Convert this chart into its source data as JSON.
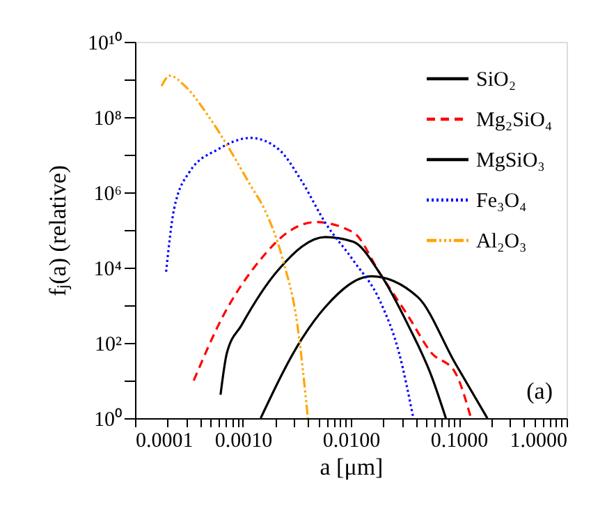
{
  "chart_data": {
    "type": "line",
    "xlabel": "a [μm]",
    "ylabel": "fⱼ(a)  (relative)",
    "log": "xy",
    "grid": false,
    "legend": "top right",
    "xlim": [
      0.0001,
      1.0
    ],
    "ylim": [
      1,
      10000000000
    ],
    "xticks": [
      {
        "value": 0.0001,
        "label": "0.0001"
      },
      {
        "value": 0.0002,
        "label": null
      },
      {
        "value": 0.0003,
        "label": null
      },
      {
        "value": 0.0004,
        "label": null
      },
      {
        "value": 0.0005,
        "label": null
      },
      {
        "value": 0.0006,
        "label": null
      },
      {
        "value": 0.0007,
        "label": null
      },
      {
        "value": 0.0008,
        "label": null
      },
      {
        "value": 0.0009,
        "label": null
      },
      {
        "value": 0.001,
        "label": "0.0010"
      },
      {
        "value": 0.002,
        "label": null
      },
      {
        "value": 0.003,
        "label": null
      },
      {
        "value": 0.004,
        "label": null
      },
      {
        "value": 0.005,
        "label": null
      },
      {
        "value": 0.006,
        "label": null
      },
      {
        "value": 0.007,
        "label": null
      },
      {
        "value": 0.008,
        "label": null
      },
      {
        "value": 0.009,
        "label": null
      },
      {
        "value": 0.01,
        "label": "0.0100"
      },
      {
        "value": 0.02,
        "label": null
      },
      {
        "value": 0.03,
        "label": null
      },
      {
        "value": 0.04,
        "label": null
      },
      {
        "value": 0.05,
        "label": null
      },
      {
        "value": 0.06,
        "label": null
      },
      {
        "value": 0.07,
        "label": null
      },
      {
        "value": 0.08,
        "label": null
      },
      {
        "value": 0.09,
        "label": null
      },
      {
        "value": 0.1,
        "label": "0.1000"
      },
      {
        "value": 0.2,
        "label": null
      },
      {
        "value": 0.3,
        "label": null
      },
      {
        "value": 0.4,
        "label": null
      },
      {
        "value": 0.5,
        "label": null
      },
      {
        "value": 0.6,
        "label": null
      },
      {
        "value": 0.7,
        "label": null
      },
      {
        "value": 0.8,
        "label": null
      },
      {
        "value": 0.9,
        "label": null
      },
      {
        "value": 1.0,
        "label": "1.0000"
      }
    ],
    "yticks": [
      {
        "value": 1,
        "label": "10⁰"
      },
      {
        "value": 10,
        "label": null
      },
      {
        "value": 100,
        "label": "10²"
      },
      {
        "value": 1000,
        "label": null
      },
      {
        "value": 10000,
        "label": "10⁴"
      },
      {
        "value": 100000,
        "label": null
      },
      {
        "value": 1000000,
        "label": "10⁶"
      },
      {
        "value": 10000000,
        "label": null
      },
      {
        "value": 100000000,
        "label": "10⁸"
      },
      {
        "value": 1000000000,
        "label": null
      },
      {
        "value": 10000000000,
        "label": "10¹⁰"
      }
    ],
    "series": [
      {
        "name": "SiO₂",
        "color": "#000000",
        "line_style": "solid",
        "x": [
          0.00146,
          0.0035,
          0.0058,
          0.0155,
          0.0417,
          0.092,
          0.184
        ],
        "values": [
          1,
          126,
          900,
          5900,
          1660,
          30,
          1
        ]
      },
      {
        "name": "Mg₂SiO₄",
        "color": "#ff0000",
        "line_style": "dashed",
        "x": [
          0.00035,
          0.00065,
          0.00144,
          0.0026,
          0.0047,
          0.0105,
          0.0188,
          0.034,
          0.056,
          0.092,
          0.13
        ],
        "values": [
          10,
          500,
          15800,
          87000,
          162000,
          87000,
          6700,
          516,
          54,
          17,
          1
        ]
      },
      {
        "name": "MgSiO₃",
        "color": "#000000",
        "line_style": "solid",
        "x": [
          0.00062,
          0.00071,
          0.00097,
          0.00214,
          0.0058,
          0.0105,
          0.0188,
          0.034,
          0.056,
          0.076
        ],
        "values": [
          4.2,
          54,
          295,
          8900,
          65000,
          49000,
          6700,
          295,
          13,
          1
        ]
      },
      {
        "name": "Fe₃O₄",
        "color": "#0000ff",
        "line_style": "dotted",
        "x": [
          0.000194,
          0.00023,
          0.00032,
          0.00059,
          0.00118,
          0.00214,
          0.0035,
          0.0058,
          0.0105,
          0.0188,
          0.028,
          0.038
        ],
        "values": [
          7800,
          360000,
          3500000,
          14000000,
          28000000,
          14000000,
          2000000,
          155000,
          15800,
          1230,
          54,
          1
        ]
      },
      {
        "name": "Al₂O₃",
        "color": "#ffa500",
        "line_style": "dashdot",
        "x": [
          0.000176,
          0.00021,
          0.00029,
          0.00048,
          0.00079,
          0.00118,
          0.00158,
          0.00235,
          0.0032,
          0.004
        ],
        "values": [
          670000000,
          1260000000,
          670000000,
          105000000,
          11000000,
          1500000,
          360000,
          15800,
          295,
          1
        ]
      }
    ],
    "annotations": [
      "(a)"
    ]
  }
}
